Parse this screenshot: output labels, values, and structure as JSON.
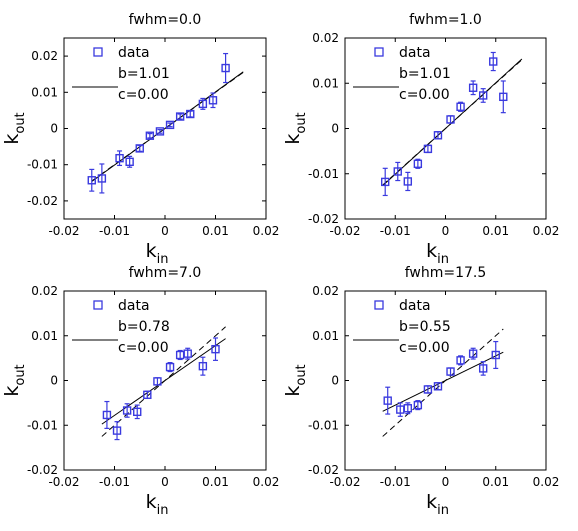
{
  "chart_data": [
    {
      "type": "scatter",
      "title": "fwhm=0.0",
      "xlabel": "k",
      "xlabel_sub": "in",
      "ylabel": "k",
      "ylabel_sub": "out",
      "xlim": [
        -0.02,
        0.02
      ],
      "ylim": [
        -0.025,
        0.025
      ],
      "xticks": [
        "-0.02",
        "-0.01",
        "0",
        "0.01",
        "0.02"
      ],
      "yticks": [
        "-0.02",
        "-0.01",
        "0",
        "0.01",
        "0.02"
      ],
      "legend": {
        "data_label": "data",
        "b_label": "b=1.01",
        "c_label": "c=0.00",
        "placement": "top-left"
      },
      "fit": {
        "b": 1.01,
        "c": 0.0,
        "x_range": [
          -0.0145,
          0.0155
        ]
      },
      "identity_line": {
        "x_range": [
          -0.0145,
          0.0155
        ]
      },
      "points": [
        {
          "x": -0.0145,
          "y": -0.0143,
          "err": 0.003
        },
        {
          "x": -0.0125,
          "y": -0.0138,
          "err": 0.004
        },
        {
          "x": -0.009,
          "y": -0.0082,
          "err": 0.002
        },
        {
          "x": -0.007,
          "y": -0.0092,
          "err": 0.0015
        },
        {
          "x": -0.005,
          "y": -0.0055,
          "err": 0.0008
        },
        {
          "x": -0.003,
          "y": -0.002,
          "err": 0.0006
        },
        {
          "x": -0.001,
          "y": -0.0008,
          "err": 0.0005
        },
        {
          "x": 0.001,
          "y": 0.001,
          "err": 0.0005
        },
        {
          "x": 0.003,
          "y": 0.0033,
          "err": 0.0007
        },
        {
          "x": 0.005,
          "y": 0.004,
          "err": 0.0008
        },
        {
          "x": 0.0075,
          "y": 0.0068,
          "err": 0.0015
        },
        {
          "x": 0.0095,
          "y": 0.0078,
          "err": 0.002
        },
        {
          "x": 0.012,
          "y": 0.0167,
          "err": 0.004
        }
      ]
    },
    {
      "type": "scatter",
      "title": "fwhm=1.0",
      "xlabel": "k",
      "xlabel_sub": "in",
      "ylabel": "k",
      "ylabel_sub": "out",
      "xlim": [
        -0.02,
        0.02
      ],
      "ylim": [
        -0.02,
        0.02
      ],
      "xticks": [
        "-0.02",
        "-0.01",
        "0",
        "0.01",
        "0.02"
      ],
      "yticks": [
        "-0.02",
        "-0.01",
        "0",
        "0.01",
        "0.02"
      ],
      "legend": {
        "data_label": "data",
        "b_label": "b=1.01",
        "c_label": "c=0.00",
        "placement": "top-left"
      },
      "fit": {
        "b": 1.01,
        "c": 0.0,
        "x_range": [
          -0.0125,
          0.0152
        ]
      },
      "identity_line": {
        "x_range": [
          -0.0125,
          0.0152
        ]
      },
      "points": [
        {
          "x": -0.012,
          "y": -0.0118,
          "err": 0.003
        },
        {
          "x": -0.0095,
          "y": -0.0095,
          "err": 0.002
        },
        {
          "x": -0.0075,
          "y": -0.0117,
          "err": 0.002
        },
        {
          "x": -0.0055,
          "y": -0.0078,
          "err": 0.001
        },
        {
          "x": -0.0035,
          "y": -0.0045,
          "err": 0.0008
        },
        {
          "x": -0.0015,
          "y": -0.0015,
          "err": 0.0008
        },
        {
          "x": 0.001,
          "y": 0.002,
          "err": 0.0008
        },
        {
          "x": 0.003,
          "y": 0.0048,
          "err": 0.001
        },
        {
          "x": 0.0055,
          "y": 0.009,
          "err": 0.0015
        },
        {
          "x": 0.0075,
          "y": 0.0073,
          "err": 0.0015
        },
        {
          "x": 0.0095,
          "y": 0.0148,
          "err": 0.002
        },
        {
          "x": 0.0115,
          "y": 0.007,
          "err": 0.0035
        }
      ]
    },
    {
      "type": "scatter",
      "title": "fwhm=7.0",
      "xlabel": "k",
      "xlabel_sub": "in",
      "ylabel": "k",
      "ylabel_sub": "out",
      "xlim": [
        -0.02,
        0.02
      ],
      "ylim": [
        -0.02,
        0.02
      ],
      "xticks": [
        "-0.02",
        "-0.01",
        "0",
        "0.01",
        "0.02"
      ],
      "yticks": [
        "-0.02",
        "-0.01",
        "0",
        "0.01",
        "0.02"
      ],
      "legend": {
        "data_label": "data",
        "b_label": "b=0.78",
        "c_label": "c=0.00",
        "placement": "top-left"
      },
      "fit": {
        "b": 0.78,
        "c": 0.0,
        "x_range": [
          -0.0125,
          0.012
        ]
      },
      "identity_line": {
        "x_range": [
          -0.0125,
          0.012
        ]
      },
      "points": [
        {
          "x": -0.0115,
          "y": -0.0077,
          "err": 0.003
        },
        {
          "x": -0.0095,
          "y": -0.0112,
          "err": 0.002
        },
        {
          "x": -0.0075,
          "y": -0.0067,
          "err": 0.0015
        },
        {
          "x": -0.0055,
          "y": -0.007,
          "err": 0.0015
        },
        {
          "x": -0.0035,
          "y": -0.0032,
          "err": 0.0008
        },
        {
          "x": -0.0015,
          "y": -0.0002,
          "err": 0.0008
        },
        {
          "x": 0.001,
          "y": 0.003,
          "err": 0.001
        },
        {
          "x": 0.003,
          "y": 0.0057,
          "err": 0.001
        },
        {
          "x": 0.0045,
          "y": 0.006,
          "err": 0.0012
        },
        {
          "x": 0.0075,
          "y": 0.0032,
          "err": 0.002
        },
        {
          "x": 0.01,
          "y": 0.007,
          "err": 0.0025
        }
      ]
    },
    {
      "type": "scatter",
      "title": "fwhm=17.5",
      "xlabel": "k",
      "xlabel_sub": "in",
      "ylabel": "k",
      "ylabel_sub": "out",
      "xlim": [
        -0.02,
        0.02
      ],
      "ylim": [
        -0.02,
        0.02
      ],
      "xticks": [
        "-0.02",
        "-0.01",
        "0",
        "0.01",
        "0.02"
      ],
      "yticks": [
        "-0.02",
        "-0.01",
        "0",
        "0.01",
        "0.02"
      ],
      "legend": {
        "data_label": "data",
        "b_label": "b=0.55",
        "c_label": "c=0.00",
        "placement": "top-left"
      },
      "fit": {
        "b": 0.55,
        "c": 0.0,
        "x_range": [
          -0.0125,
          0.0115
        ]
      },
      "identity_line": {
        "x_range": [
          -0.0125,
          0.0115
        ]
      },
      "points": [
        {
          "x": -0.0115,
          "y": -0.0045,
          "err": 0.003
        },
        {
          "x": -0.009,
          "y": -0.0065,
          "err": 0.0015
        },
        {
          "x": -0.0075,
          "y": -0.0062,
          "err": 0.0012
        },
        {
          "x": -0.0055,
          "y": -0.0055,
          "err": 0.001
        },
        {
          "x": -0.0035,
          "y": -0.002,
          "err": 0.0008
        },
        {
          "x": -0.0015,
          "y": -0.0013,
          "err": 0.0008
        },
        {
          "x": 0.001,
          "y": 0.002,
          "err": 0.0008
        },
        {
          "x": 0.003,
          "y": 0.0045,
          "err": 0.001
        },
        {
          "x": 0.0055,
          "y": 0.006,
          "err": 0.0012
        },
        {
          "x": 0.0075,
          "y": 0.0027,
          "err": 0.0015
        },
        {
          "x": 0.01,
          "y": 0.0057,
          "err": 0.003
        }
      ]
    }
  ],
  "colors": {
    "marker": "#3a3adf",
    "axis": "#000000",
    "line": "#000000"
  }
}
